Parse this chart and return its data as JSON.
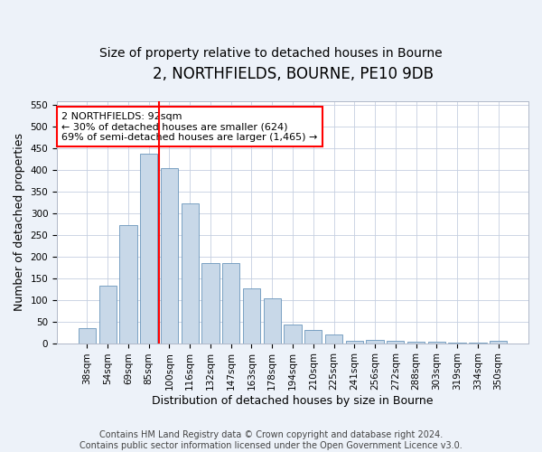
{
  "title": "2, NORTHFIELDS, BOURNE, PE10 9DB",
  "subtitle": "Size of property relative to detached houses in Bourne",
  "xlabel": "Distribution of detached houses by size in Bourne",
  "ylabel": "Number of detached properties",
  "categories": [
    "38sqm",
    "54sqm",
    "69sqm",
    "85sqm",
    "100sqm",
    "116sqm",
    "132sqm",
    "147sqm",
    "163sqm",
    "178sqm",
    "194sqm",
    "210sqm",
    "225sqm",
    "241sqm",
    "256sqm",
    "272sqm",
    "288sqm",
    "303sqm",
    "319sqm",
    "334sqm",
    "350sqm"
  ],
  "values": [
    35,
    133,
    273,
    437,
    405,
    322,
    185,
    185,
    126,
    103,
    44,
    30,
    20,
    6,
    8,
    5,
    4,
    4,
    2,
    2,
    6
  ],
  "bar_color": "#c8d8e8",
  "bar_edge_color": "#6a96bb",
  "red_line_x": 3.5,
  "annotation_line1": "2 NORTHFIELDS: 92sqm",
  "annotation_line2": "← 30% of detached houses are smaller (624)",
  "annotation_line3": "69% of semi-detached houses are larger (1,465) →",
  "ylim": [
    0,
    560
  ],
  "yticks": [
    0,
    50,
    100,
    150,
    200,
    250,
    300,
    350,
    400,
    450,
    500,
    550
  ],
  "footer_line1": "Contains HM Land Registry data © Crown copyright and database right 2024.",
  "footer_line2": "Contains public sector information licensed under the Open Government Licence v3.0.",
  "bg_color": "#edf2f9",
  "plot_bg_color": "#ffffff",
  "title_fontsize": 12,
  "subtitle_fontsize": 10,
  "axis_label_fontsize": 9,
  "tick_fontsize": 7.5,
  "footer_fontsize": 7
}
